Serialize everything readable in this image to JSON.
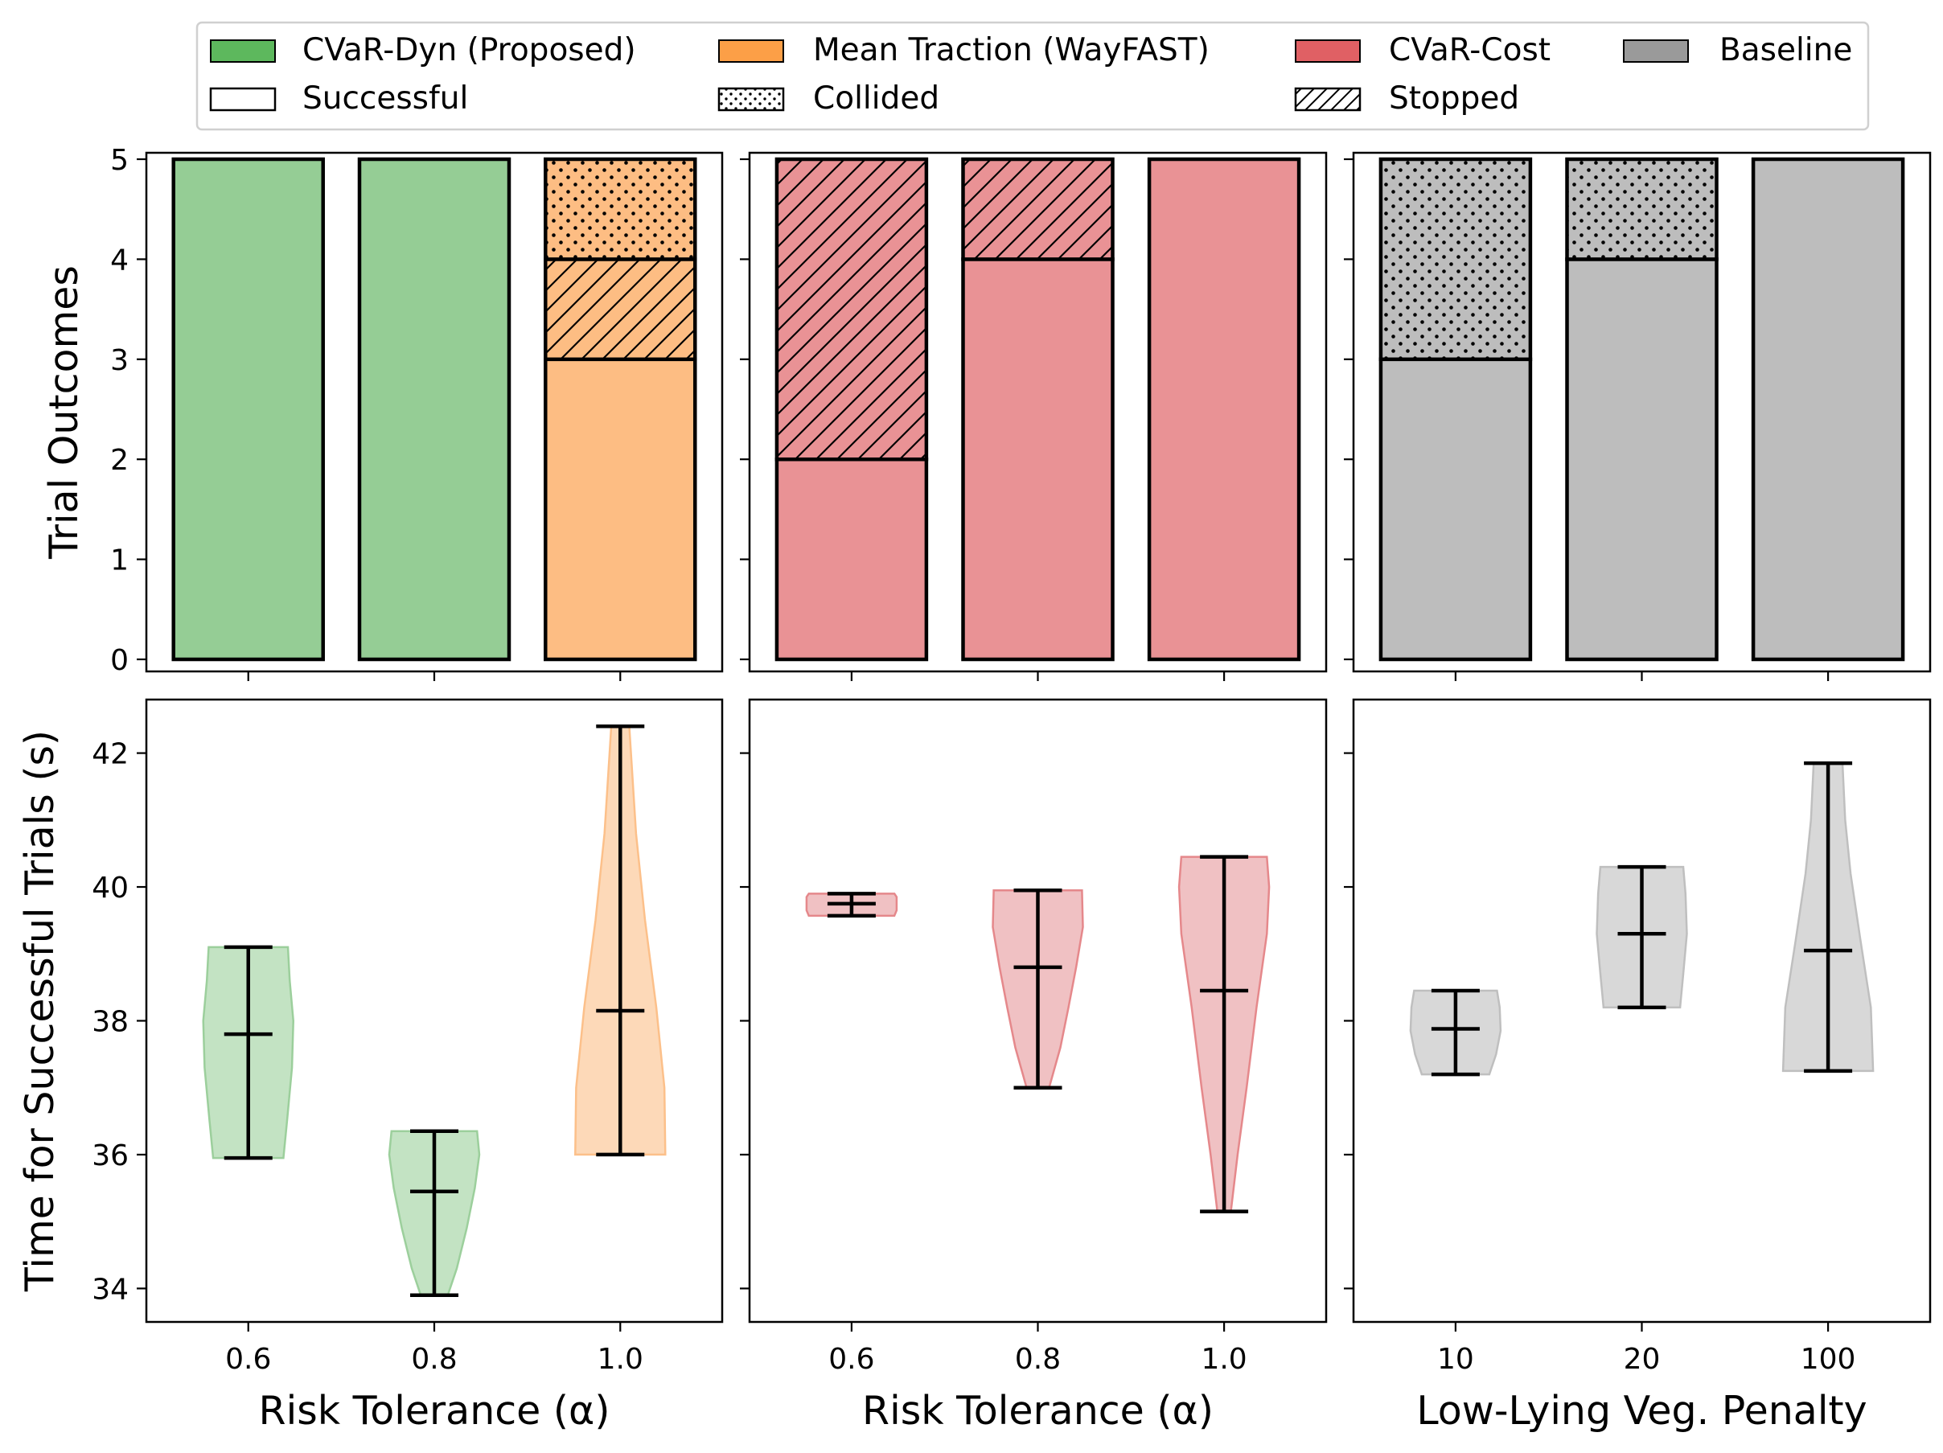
{
  "legend": {
    "items": [
      {
        "label": "CVaR-Dyn (Proposed)",
        "swatch": "green"
      },
      {
        "label": "Mean Traction (WayFAST)",
        "swatch": "orange"
      },
      {
        "label": "CVaR-Cost",
        "swatch": "red"
      },
      {
        "label": "Baseline",
        "swatch": "gray"
      },
      {
        "label": "Successful",
        "swatch": "plain"
      },
      {
        "label": "Collided",
        "swatch": "dots"
      },
      {
        "label": "Stopped",
        "swatch": "hatch"
      }
    ]
  },
  "colors": {
    "green_fill": "#95cd95",
    "green_legend": "#5db85d",
    "green_violin": "#c3e3c3",
    "green_violin_edge": "#9ccf9c",
    "orange_fill": "#fdbd83",
    "orange_legend": "#fc9f47",
    "orange_violin": "#fdd9b8",
    "orange_violin_edge": "#fcc08a",
    "red_fill": "#e99295",
    "red_legend": "#e06064",
    "red_violin": "#f0c1c3",
    "red_violin_edge": "#e5888b",
    "gray_fill": "#bdbdbd",
    "gray_legend": "#9a9a9a",
    "gray_violin": "#d8d8d8",
    "gray_violin_edge": "#bfbfbf"
  },
  "chart_data": [
    {
      "type": "bar",
      "stacked": true,
      "panel": "top-left",
      "ylabel": "Trial Outcomes",
      "ylim": [
        0,
        5
      ],
      "yticks": [
        0,
        1,
        2,
        3,
        4,
        5
      ],
      "categories": [
        "0.6",
        "0.8",
        "1.0"
      ],
      "bars": [
        {
          "method": "CVaR-Dyn (Proposed)",
          "color": "green",
          "successful": 5,
          "stopped": 0,
          "collided": 0
        },
        {
          "method": "CVaR-Dyn (Proposed)",
          "color": "green",
          "successful": 5,
          "stopped": 0,
          "collided": 0
        },
        {
          "method": "Mean Traction (WayFAST)",
          "color": "orange",
          "successful": 3,
          "stopped": 1,
          "collided": 1
        }
      ]
    },
    {
      "type": "bar",
      "stacked": true,
      "panel": "top-middle",
      "ylim": [
        0,
        5
      ],
      "categories": [
        "0.6",
        "0.8",
        "1.0"
      ],
      "bars": [
        {
          "method": "CVaR-Cost",
          "color": "red",
          "successful": 2,
          "stopped": 3,
          "collided": 0
        },
        {
          "method": "CVaR-Cost",
          "color": "red",
          "successful": 4,
          "stopped": 1,
          "collided": 0
        },
        {
          "method": "CVaR-Cost",
          "color": "red",
          "successful": 5,
          "stopped": 0,
          "collided": 0
        }
      ]
    },
    {
      "type": "bar",
      "stacked": true,
      "panel": "top-right",
      "ylim": [
        0,
        5
      ],
      "categories": [
        "10",
        "20",
        "100"
      ],
      "bars": [
        {
          "method": "Baseline",
          "color": "gray",
          "successful": 3,
          "stopped": 0,
          "collided": 2
        },
        {
          "method": "Baseline",
          "color": "gray",
          "successful": 4,
          "stopped": 0,
          "collided": 1
        },
        {
          "method": "Baseline",
          "color": "gray",
          "successful": 5,
          "stopped": 0,
          "collided": 0
        }
      ]
    },
    {
      "type": "violin",
      "panel": "bottom-left",
      "xlabel": "Risk Tolerance (α)",
      "ylabel": "Time for Successful Trials (s)",
      "ylim": [
        33.5,
        42.8
      ],
      "yticks": [
        34,
        36,
        38,
        40,
        42
      ],
      "categories": [
        "0.6",
        "0.8",
        "1.0"
      ],
      "violins": [
        {
          "color": "green",
          "min": 35.95,
          "mean": 37.8,
          "max": 39.1,
          "profile": [
            [
              35.95,
              0.78
            ],
            [
              36.5,
              0.86
            ],
            [
              37.3,
              0.97
            ],
            [
              38.0,
              1.0
            ],
            [
              38.6,
              0.92
            ],
            [
              39.1,
              0.88
            ]
          ]
        },
        {
          "color": "green",
          "min": 33.9,
          "mean": 35.45,
          "max": 36.35,
          "profile": [
            [
              33.9,
              0.3
            ],
            [
              34.3,
              0.5
            ],
            [
              34.9,
              0.72
            ],
            [
              35.5,
              0.9
            ],
            [
              36.0,
              1.0
            ],
            [
              36.35,
              0.95
            ]
          ]
        },
        {
          "color": "orange",
          "min": 36.0,
          "mean": 38.15,
          "max": 42.4,
          "profile": [
            [
              36.0,
              1.0
            ],
            [
              37.0,
              0.98
            ],
            [
              38.2,
              0.8
            ],
            [
              39.5,
              0.55
            ],
            [
              40.8,
              0.35
            ],
            [
              42.4,
              0.2
            ]
          ]
        }
      ]
    },
    {
      "type": "violin",
      "panel": "bottom-middle",
      "xlabel": "Risk Tolerance (α)",
      "ylim": [
        33.5,
        42.8
      ],
      "categories": [
        "0.6",
        "0.8",
        "1.0"
      ],
      "violins": [
        {
          "color": "red",
          "min": 39.57,
          "mean": 39.75,
          "max": 39.9,
          "profile": [
            [
              39.57,
              0.95
            ],
            [
              39.65,
              1.0
            ],
            [
              39.75,
              1.0
            ],
            [
              39.85,
              1.0
            ],
            [
              39.9,
              0.95
            ]
          ]
        },
        {
          "color": "red",
          "min": 37.0,
          "mean": 38.8,
          "max": 39.95,
          "profile": [
            [
              37.0,
              0.25
            ],
            [
              37.6,
              0.5
            ],
            [
              38.2,
              0.68
            ],
            [
              38.8,
              0.85
            ],
            [
              39.4,
              1.0
            ],
            [
              39.95,
              0.98
            ]
          ]
        },
        {
          "color": "red",
          "min": 35.15,
          "mean": 38.45,
          "max": 40.45,
          "profile": [
            [
              35.15,
              0.15
            ],
            [
              36.0,
              0.3
            ],
            [
              37.0,
              0.5
            ],
            [
              38.2,
              0.72
            ],
            [
              39.3,
              0.95
            ],
            [
              40.0,
              1.0
            ],
            [
              40.45,
              0.95
            ]
          ]
        }
      ]
    },
    {
      "type": "violin",
      "panel": "bottom-right",
      "xlabel": "Low-Lying Veg. Penalty",
      "ylim": [
        33.5,
        42.8
      ],
      "categories": [
        "10",
        "20",
        "100"
      ],
      "violins": [
        {
          "color": "gray",
          "min": 37.2,
          "mean": 37.88,
          "max": 38.45,
          "profile": [
            [
              37.2,
              0.75
            ],
            [
              37.5,
              0.9
            ],
            [
              37.85,
              1.0
            ],
            [
              38.2,
              0.98
            ],
            [
              38.45,
              0.92
            ]
          ]
        },
        {
          "color": "gray",
          "min": 38.2,
          "mean": 39.3,
          "max": 40.3,
          "profile": [
            [
              38.2,
              0.85
            ],
            [
              38.7,
              0.92
            ],
            [
              39.3,
              1.0
            ],
            [
              39.9,
              0.97
            ],
            [
              40.3,
              0.92
            ]
          ]
        },
        {
          "color": "gray",
          "min": 37.25,
          "mean": 39.05,
          "max": 41.85,
          "profile": [
            [
              37.25,
              1.0
            ],
            [
              38.2,
              0.95
            ],
            [
              39.2,
              0.72
            ],
            [
              40.2,
              0.5
            ],
            [
              41.0,
              0.38
            ],
            [
              41.85,
              0.32
            ]
          ]
        }
      ]
    }
  ]
}
